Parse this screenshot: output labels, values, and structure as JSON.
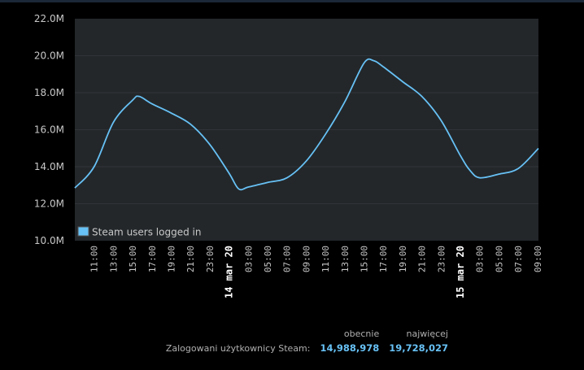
{
  "chart_data": {
    "type": "line",
    "ylim": [
      10000000,
      22000000
    ],
    "y_ticks": [
      "10.0M",
      "12.0M",
      "14.0M",
      "16.0M",
      "18.0M",
      "20.0M",
      "22.0M"
    ],
    "x_tick_labels": [
      "11:00",
      "13:00",
      "15:00",
      "17:00",
      "19:00",
      "21:00",
      "23:00",
      "14 mar 20",
      "03:00",
      "05:00",
      "07:00",
      "09:00",
      "11:00",
      "13:00",
      "15:00",
      "17:00",
      "19:00",
      "21:00",
      "23:00",
      "15 mar 20",
      "03:00",
      "05:00",
      "07:00",
      "09:00"
    ],
    "grid": true,
    "legend_position": "bottom-left",
    "series": [
      {
        "name": "Steam users logged in",
        "color": "#67c1f5",
        "x": [
          "13 mar 09:00",
          "13 mar 11:00",
          "13 mar 13:00",
          "13 mar 15:00",
          "13 mar 15:40",
          "13 mar 17:00",
          "13 mar 19:00",
          "13 mar 21:00",
          "13 mar 23:00",
          "14 mar 01:00",
          "14 mar 02:00",
          "14 mar 03:00",
          "14 mar 05:00",
          "14 mar 07:00",
          "14 mar 09:00",
          "14 mar 11:00",
          "14 mar 13:00",
          "14 mar 15:00",
          "14 mar 16:00",
          "14 mar 17:00",
          "14 mar 19:00",
          "14 mar 21:00",
          "14 mar 23:00",
          "15 mar 01:00",
          "15 mar 02:00",
          "15 mar 03:00",
          "15 mar 05:00",
          "15 mar 07:00",
          "15 mar 09:06"
        ],
        "values": [
          12850000,
          14000000,
          16400000,
          17600000,
          17800000,
          17400000,
          16900000,
          16300000,
          15200000,
          13650000,
          12800000,
          12900000,
          13150000,
          13400000,
          14300000,
          15750000,
          17500000,
          19600000,
          19730000,
          19400000,
          18600000,
          17800000,
          16500000,
          14600000,
          13800000,
          13400000,
          13600000,
          13900000,
          14990000
        ]
      }
    ]
  },
  "stats": {
    "col_current": "obecnie",
    "col_peak": "najwięcej",
    "row_label": "Zalogowani użytkownicy Steam:",
    "current": "14,988,978",
    "peak": "19,728,027"
  }
}
